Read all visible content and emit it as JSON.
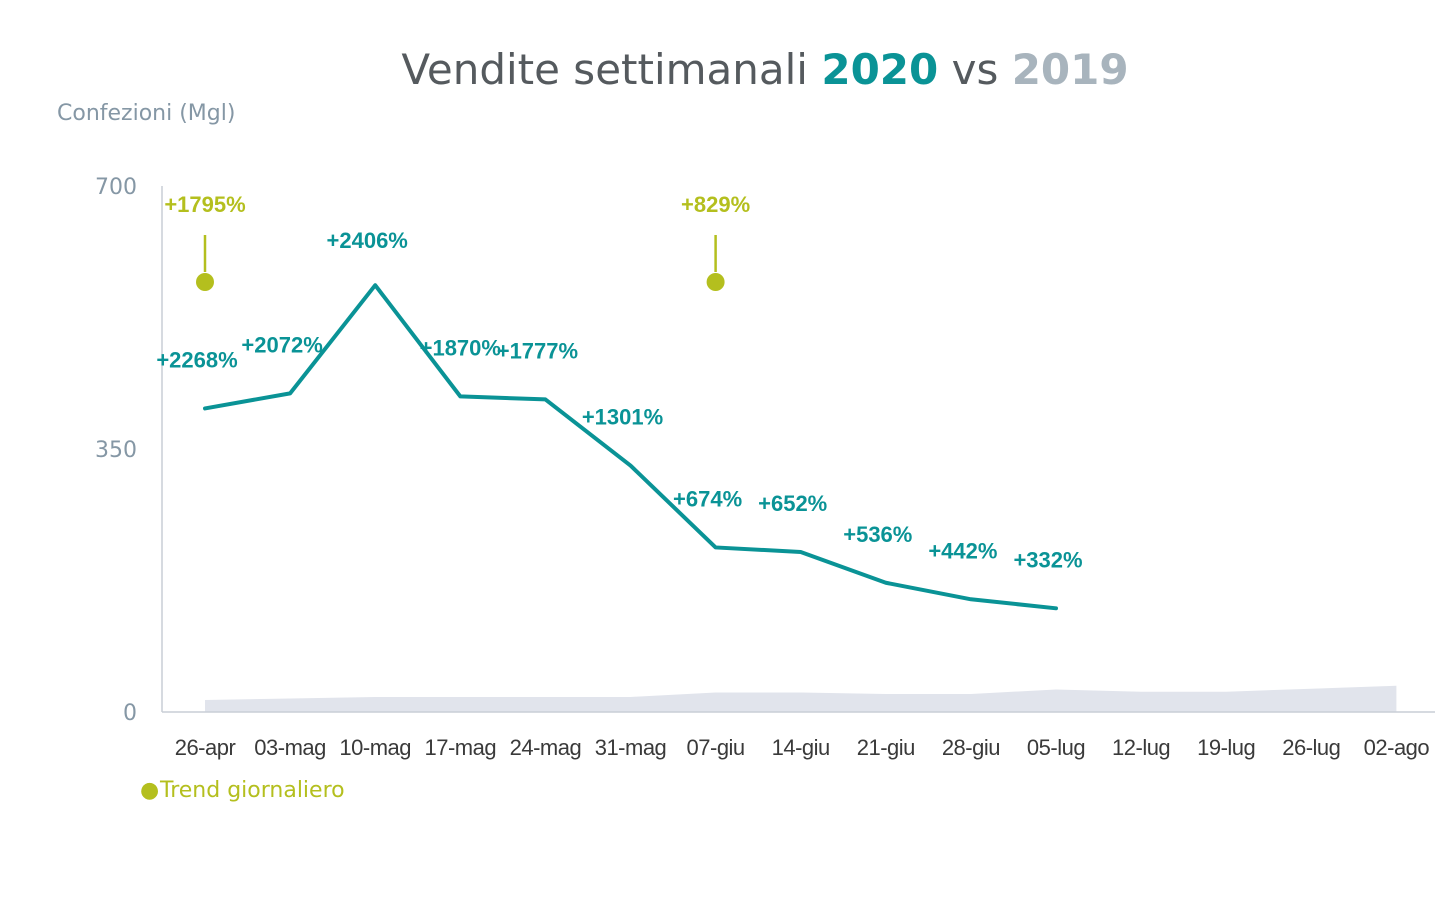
{
  "colors": {
    "series_2020": "#0a9396",
    "series_2019": "#e1e4ec",
    "title_text": "#555a5e",
    "title_2019": "#a8b4bd",
    "axis_text": "#8597a5",
    "axis_line": "#c9ced6",
    "tick_text": "#3a3a3a",
    "trend": "#b4bf1e"
  },
  "chart_data": {
    "type": "line",
    "title": {
      "prefix": "Vendite settimanali ",
      "highlight_2020": "2020",
      "middle": " vs ",
      "highlight_2019": "2019"
    },
    "ylabel": "Confezioni (Mgl)",
    "xlabel": "",
    "ylim": [
      0,
      700
    ],
    "yticks": [
      "0",
      "350",
      "700"
    ],
    "categories": [
      "26-apr",
      "03-mag",
      "10-mag",
      "17-mag",
      "24-mag",
      "31-mag",
      "07-giu",
      "14-giu",
      "21-giu",
      "28-giu",
      "05-lug",
      "12-lug",
      "19-lug",
      "26-lug",
      "02-ago"
    ],
    "series": [
      {
        "key": "2020",
        "type": "line",
        "values": [
          404,
          424,
          568,
          420,
          416,
          328,
          219,
          213,
          172,
          150,
          138,
          null,
          null,
          null,
          null
        ],
        "labels": [
          "+2268%",
          "+2072%",
          "+2406%",
          "+1870%",
          "+1777%",
          "+1301%",
          "+674%",
          "+652%",
          "+536%",
          "+442%",
          "+332%",
          "",
          "",
          "",
          ""
        ]
      },
      {
        "key": "2019",
        "type": "area",
        "values": [
          16,
          18,
          20,
          20,
          20,
          20,
          26,
          26,
          24,
          24,
          30,
          27,
          27,
          31,
          35
        ]
      }
    ],
    "trend_markers": [
      {
        "category": "26-apr",
        "label": "+1795%"
      },
      {
        "category": "07-giu",
        "label": "+829%"
      }
    ],
    "legend": {
      "bullet": "●",
      "label": "Trend giornaliero",
      "position": "bottom-left"
    },
    "grid": false
  }
}
